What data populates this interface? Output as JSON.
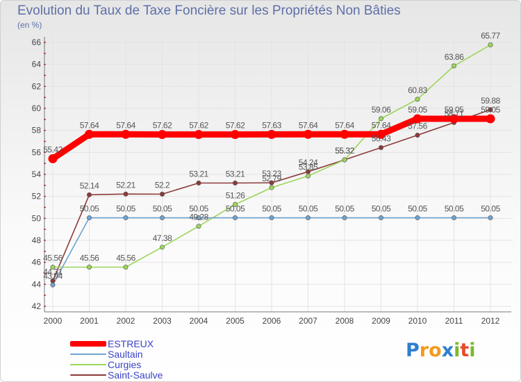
{
  "title": "Evolution du Taux de Taxe Foncière sur les Propriétés Non Bâties",
  "unit_label": "(en %)",
  "logo": {
    "text": "Proxiti",
    "letters": [
      {
        "ch": "P",
        "color": "#2d7fd0"
      },
      {
        "ch": "r",
        "color": "#f39a1c"
      },
      {
        "ch": "o",
        "color": "#f39a1c"
      },
      {
        "ch": "x",
        "color": "#2d7fd0"
      },
      {
        "ch": "i",
        "color": "#7ab82e"
      },
      {
        "ch": "t",
        "color": "#e84b2c"
      },
      {
        "ch": "i",
        "color": "#7ab82e"
      }
    ]
  },
  "chart_data": {
    "type": "line",
    "title": "Evolution du Taux de Taxe Foncière sur les Propriétés Non Bâties",
    "xlabel": "",
    "ylabel": "(en %)",
    "ylim": [
      42,
      66
    ],
    "yticks": [
      42,
      44,
      46,
      48,
      50,
      52,
      54,
      56,
      58,
      60,
      62,
      64,
      66
    ],
    "categories": [
      "2000",
      "2001",
      "2002",
      "2003",
      "2004",
      "2005",
      "2006",
      "2007",
      "2008",
      "2009",
      "2010",
      "2011",
      "2012"
    ],
    "grid": true,
    "series": [
      {
        "name": "ESTREUX",
        "color": "#ff0000",
        "emphasis": true,
        "values": [
          55.42,
          57.64,
          57.64,
          57.62,
          57.62,
          57.62,
          57.63,
          57.64,
          57.64,
          57.64,
          59.05,
          59.05,
          59.05
        ]
      },
      {
        "name": "Saultain",
        "color": "#6fa3cf",
        "values": [
          43.94,
          50.05,
          50.05,
          50.05,
          50.05,
          50.05,
          50.05,
          50.05,
          50.05,
          50.05,
          50.05,
          50.05,
          50.05
        ]
      },
      {
        "name": "Curgies",
        "color": "#9bd65a",
        "values": [
          45.56,
          45.56,
          45.56,
          47.38,
          49.28,
          51.26,
          52.79,
          53.85,
          55.32,
          59.06,
          60.83,
          63.86,
          65.77
        ]
      },
      {
        "name": "Saint-Saulve",
        "color": "#8b3a3a",
        "values": [
          44.31,
          52.14,
          52.21,
          52.2,
          53.21,
          53.21,
          53.23,
          54.24,
          55.32,
          56.43,
          57.56,
          58.71,
          59.88
        ]
      }
    ]
  }
}
